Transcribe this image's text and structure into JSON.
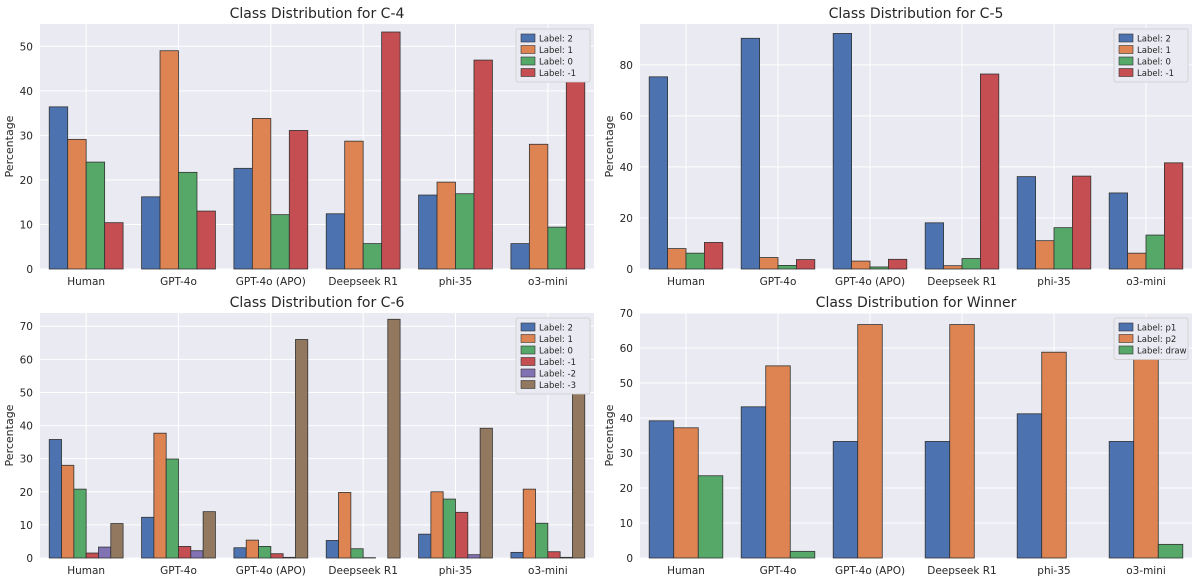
{
  "chart_data": [
    {
      "type": "bar",
      "title": "Class Distribution for C-4",
      "ylabel": "Percentage",
      "categories": [
        "Human",
        "GPT-4o",
        "GPT-4o (APO)",
        "Deepseek R1",
        "phi-35",
        "o3-mini"
      ],
      "ylim": [
        0,
        55
      ],
      "yticks": [
        0,
        10,
        20,
        30,
        40,
        50
      ],
      "grid": true,
      "legend_position": "top-right",
      "series": [
        {
          "name": "Label: 2",
          "color": "#4c72b0",
          "values": [
            36.4,
            16.2,
            22.6,
            12.4,
            16.6,
            5.7
          ]
        },
        {
          "name": "Label: 1",
          "color": "#dd8452",
          "values": [
            29.1,
            49.0,
            33.8,
            28.7,
            19.5,
            28.0
          ]
        },
        {
          "name": "Label: 0",
          "color": "#55a868",
          "values": [
            24.0,
            21.7,
            12.2,
            5.7,
            16.9,
            9.4
          ]
        },
        {
          "name": "Label: -1",
          "color": "#c44e52",
          "values": [
            10.4,
            13.0,
            31.1,
            53.2,
            46.9,
            52.0
          ]
        }
      ]
    },
    {
      "type": "bar",
      "title": "Class Distribution for C-5",
      "ylabel": "Percentage",
      "categories": [
        "Human",
        "GPT-4o",
        "GPT-4o (APO)",
        "Deepseek R1",
        "phi-35",
        "o3-mini"
      ],
      "ylim": [
        0,
        96
      ],
      "yticks": [
        0,
        20,
        40,
        60,
        80
      ],
      "grid": true,
      "legend_position": "top-right",
      "series": [
        {
          "name": "Label: 2",
          "color": "#4c72b0",
          "values": [
            75.3,
            90.4,
            92.3,
            18.1,
            36.2,
            29.8
          ]
        },
        {
          "name": "Label: 1",
          "color": "#dd8452",
          "values": [
            8.0,
            4.5,
            3.1,
            1.3,
            11.1,
            6.2
          ]
        },
        {
          "name": "Label: 0",
          "color": "#55a868",
          "values": [
            6.2,
            1.4,
            0.8,
            4.1,
            16.2,
            13.3
          ]
        },
        {
          "name": "Label: -1",
          "color": "#c44e52",
          "values": [
            10.4,
            3.7,
            3.8,
            76.4,
            36.4,
            41.6
          ]
        }
      ]
    },
    {
      "type": "bar",
      "title": "Class Distribution for C-6",
      "ylabel": "Percentage",
      "categories": [
        "Human",
        "GPT-4o",
        "GPT-4o (APO)",
        "Deepseek R1",
        "phi-35",
        "o3-mini"
      ],
      "ylim": [
        0,
        74
      ],
      "yticks": [
        0,
        10,
        20,
        30,
        40,
        50,
        60,
        70
      ],
      "grid": true,
      "legend_position": "top-right",
      "series": [
        {
          "name": "Label: 2",
          "color": "#4c72b0",
          "values": [
            35.8,
            12.3,
            3.1,
            5.3,
            7.2,
            1.7
          ]
        },
        {
          "name": "Label: 1",
          "color": "#dd8452",
          "values": [
            28.0,
            37.7,
            5.4,
            19.8,
            20.0,
            20.8
          ]
        },
        {
          "name": "Label: 0",
          "color": "#55a868",
          "values": [
            20.8,
            29.9,
            3.5,
            2.8,
            17.8,
            10.5
          ]
        },
        {
          "name": "Label: -1",
          "color": "#c44e52",
          "values": [
            1.5,
            3.5,
            1.3,
            0.1,
            13.8,
            1.9
          ]
        },
        {
          "name": "Label: -2",
          "color": "#8172b3",
          "values": [
            3.3,
            2.2,
            0.2,
            0.0,
            1.0,
            0.2
          ]
        },
        {
          "name": "Label: -3",
          "color": "#937860",
          "values": [
            10.4,
            14.0,
            66.0,
            72.1,
            39.2,
            65.0
          ]
        }
      ]
    },
    {
      "type": "bar",
      "title": "Class Distribution for Winner",
      "ylabel": "Percentage",
      "categories": [
        "Human",
        "GPT-4o",
        "GPT-4o (APO)",
        "Deepseek R1",
        "phi-35",
        "o3-mini"
      ],
      "ylim": [
        0,
        70
      ],
      "yticks": [
        0,
        10,
        20,
        30,
        40,
        50,
        60,
        70
      ],
      "grid": true,
      "legend_position": "top-right",
      "series": [
        {
          "name": "Label: p1",
          "color": "#4c72b0",
          "values": [
            39.2,
            43.2,
            33.3,
            33.3,
            41.2,
            33.3
          ]
        },
        {
          "name": "Label: p2",
          "color": "#dd8452",
          "values": [
            37.2,
            54.9,
            66.7,
            66.7,
            58.8,
            62.7
          ]
        },
        {
          "name": "Label: draw",
          "color": "#55a868",
          "values": [
            23.5,
            1.9,
            0.0,
            0.0,
            0.0,
            3.9
          ]
        }
      ]
    }
  ]
}
